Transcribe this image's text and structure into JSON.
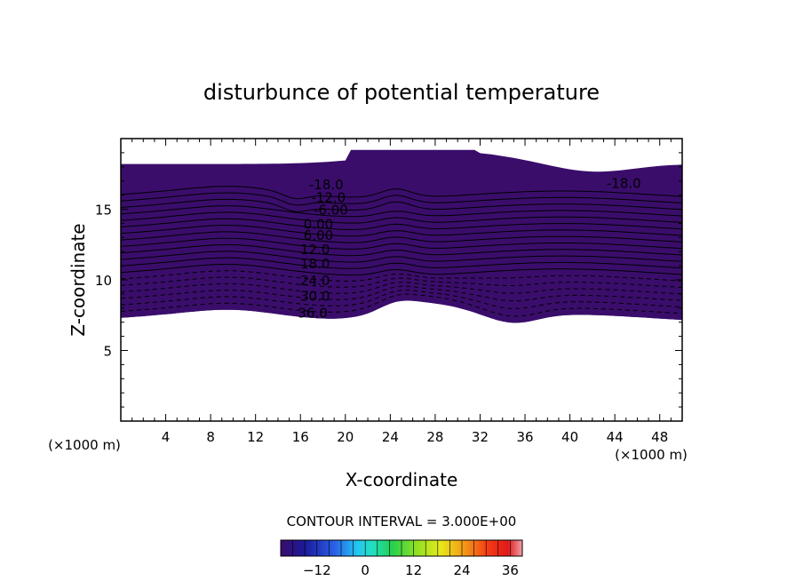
{
  "chart_data": {
    "type": "contour",
    "title": "disturbunce of potential temperature",
    "xlabel": "X-coordinate",
    "ylabel": "Z-coordinate",
    "x_unit_label": "(×1000 m)",
    "y_unit_label": "(×1000 m)",
    "xlim": [
      0,
      50
    ],
    "ylim": [
      0,
      20
    ],
    "x_ticks": [
      4,
      8,
      12,
      16,
      20,
      24,
      28,
      32,
      36,
      40,
      44,
      48
    ],
    "y_ticks": [
      5,
      10,
      15
    ],
    "contour_interval_text": "CONTOUR INTERVAL = 3.000E+00",
    "contour_interval": 3,
    "level_range": [
      -21,
      39
    ],
    "contour_labels": [
      {
        "text": "-18.0",
        "x": 18.3,
        "z": 16.7
      },
      {
        "text": "-12.0",
        "x": 18.5,
        "z": 15.8
      },
      {
        "text": "-6.00",
        "x": 18.7,
        "z": 14.9
      },
      {
        "text": "0.00",
        "x": 17.6,
        "z": 13.9
      },
      {
        "text": "6.00",
        "x": 17.6,
        "z": 13.1
      },
      {
        "text": "12.0",
        "x": 17.3,
        "z": 12.1
      },
      {
        "text": "18.0",
        "x": 17.3,
        "z": 11.1
      },
      {
        "text": "24.0",
        "x": 17.3,
        "z": 9.9
      },
      {
        "text": "30.0",
        "x": 17.3,
        "z": 8.8
      },
      {
        "text": "36.0",
        "x": 17.1,
        "z": 7.6
      },
      {
        "text": "-18.0",
        "x": 44.8,
        "z": 16.8
      }
    ],
    "colorbar": {
      "ticks": [
        -12,
        0,
        12,
        24,
        36
      ],
      "range": [
        -21,
        39
      ]
    }
  },
  "colors": {
    "ramp": [
      "#3a0d6b",
      "#1a1a9a",
      "#2a4ee0",
      "#2a9bf2",
      "#22e0e0",
      "#20d89a",
      "#22d040",
      "#8ee022",
      "#e6ea1a",
      "#f49818",
      "#f43a14",
      "#e01a1a",
      "#f0a0a8"
    ]
  }
}
